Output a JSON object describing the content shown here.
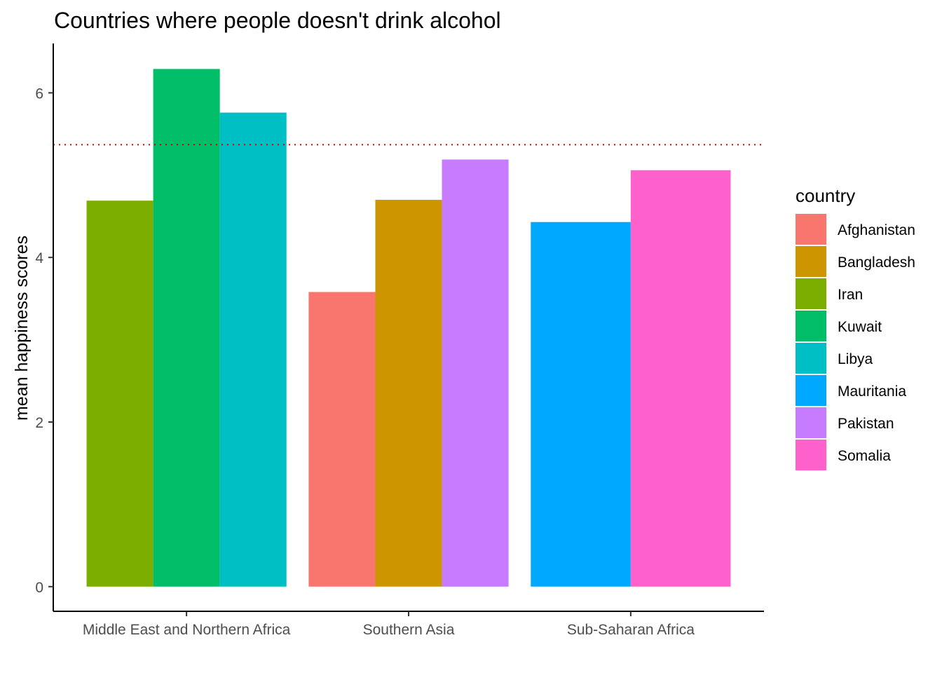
{
  "chart_data": {
    "type": "bar",
    "title": "Countries where people doesn't drink alcohol",
    "xlabel": "",
    "ylabel": "mean happiness scores",
    "ylim": [
      -0.3,
      6.6
    ],
    "yticks": [
      0,
      2,
      4,
      6
    ],
    "categories": [
      "Middle East and Northern Africa",
      "Southern Asia",
      "Sub-Saharan Africa"
    ],
    "groups": [
      {
        "category": "Middle East and Northern Africa",
        "bars": [
          {
            "country": "Iran",
            "value": 4.69
          },
          {
            "country": "Kuwait",
            "value": 6.29
          },
          {
            "country": "Libya",
            "value": 5.76
          }
        ]
      },
      {
        "category": "Southern Asia",
        "bars": [
          {
            "country": "Afghanistan",
            "value": 3.58
          },
          {
            "country": "Bangladesh",
            "value": 4.7
          },
          {
            "country": "Pakistan",
            "value": 5.19
          }
        ]
      },
      {
        "category": "Sub-Saharan Africa",
        "bars": [
          {
            "country": "Mauritania",
            "value": 4.43
          },
          {
            "country": "Somalia",
            "value": 5.06
          }
        ]
      }
    ],
    "reference_line": {
      "value": 5.37,
      "color": "#cc0000",
      "style": "dotted"
    },
    "legend": {
      "title": "country",
      "placement": "right",
      "items": [
        {
          "name": "Afghanistan",
          "color": "#F8766D"
        },
        {
          "name": "Bangladesh",
          "color": "#CD9600"
        },
        {
          "name": "Iran",
          "color": "#7CAE00"
        },
        {
          "name": "Kuwait",
          "color": "#00BE67"
        },
        {
          "name": "Libya",
          "color": "#00BFC4"
        },
        {
          "name": "Mauritania",
          "color": "#00A9FF"
        },
        {
          "name": "Pakistan",
          "color": "#C77CFF"
        },
        {
          "name": "Somalia",
          "color": "#FF61CC"
        }
      ]
    },
    "grid": false
  }
}
